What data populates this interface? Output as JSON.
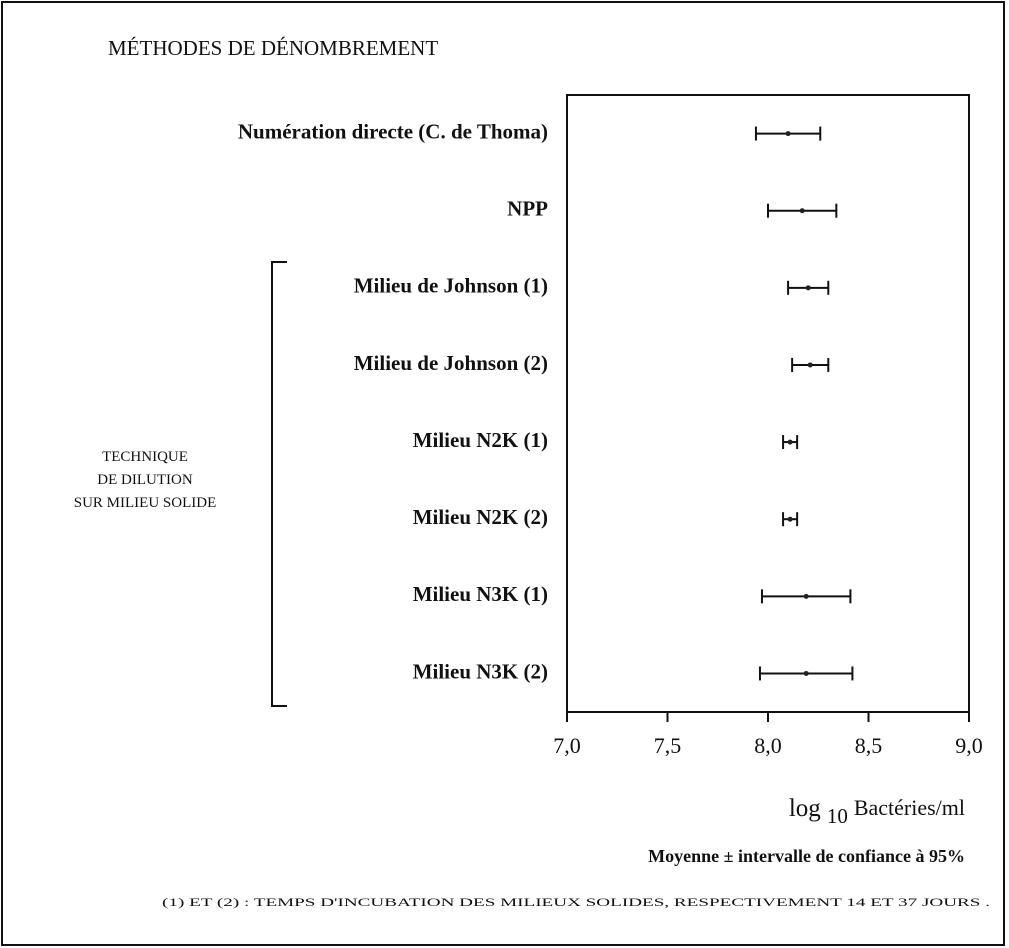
{
  "chart_data": {
    "type": "errorbar",
    "title": "MÉTHODES DE DÉNOMBREMENT",
    "categories": [
      "Numération directe (C. de Thoma)",
      "NPP",
      "Milieu de Johnson (1)",
      "Milieu de Johnson (2)",
      "Milieu N2K (1)",
      "Milieu N2K (2)",
      "Milieu N3K (1)",
      "Milieu N3K (2)"
    ],
    "values": [
      8.1,
      8.17,
      8.2,
      8.21,
      8.11,
      8.11,
      8.19,
      8.19
    ],
    "errors": [
      0.16,
      0.17,
      0.1,
      0.09,
      0.035,
      0.035,
      0.22,
      0.23
    ],
    "color": "#222222",
    "xlim": [
      7.0,
      9.0
    ],
    "xticks": [
      {
        "value": 7.0,
        "label": "7,0"
      },
      {
        "value": 7.5,
        "label": "7,5"
      },
      {
        "value": 8.0,
        "label": "8,0"
      },
      {
        "value": 8.5,
        "label": "8,5"
      },
      {
        "value": 9.0,
        "label": "9,0"
      }
    ],
    "xlabel": {
      "text": "log",
      "subscript": "10",
      "unit": "Bactéries/ml"
    },
    "subtitle": "Moyenne ± intervalle de confiance à 95%",
    "group": {
      "lines": [
        "TECHNIQUE",
        "DE DILUTION",
        "SUR MILIEU SOLIDE"
      ],
      "from": 2,
      "to": 7
    },
    "footnote": "(1) ET (2) : TEMPS D'INCUBATION DES MILIEUX SOLIDES, RESPECTIVEMENT 14 ET 37 JOURS ."
  }
}
